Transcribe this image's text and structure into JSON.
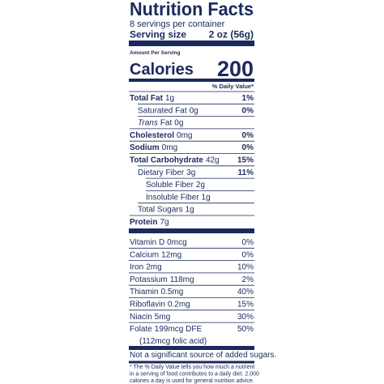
{
  "header": {
    "title": "Nutrition Facts",
    "servings": "8 servings per container",
    "serving_size_label": "Serving size",
    "serving_size": "2 oz (56g)"
  },
  "calories": {
    "amount_per_serving": "Amount Per Serving",
    "label": "Calories",
    "value": "200"
  },
  "daily_value_heading": "% Daily Value*",
  "nutrients": [
    {
      "name": "Total Fat",
      "amount": "1g",
      "dv": "1%"
    },
    {
      "name": "Saturated Fat",
      "amount": "0g",
      "dv": "0%"
    },
    {
      "name_italic": "Trans",
      "name": "Fat",
      "amount": "0g"
    },
    {
      "name": "Cholesterol",
      "amount": "0mg",
      "dv": "0%"
    },
    {
      "name": "Sodium",
      "amount": "0mg",
      "dv": "0%"
    },
    {
      "name": "Total Carbohydrate",
      "amount": "42g",
      "dv": "15%"
    },
    {
      "name": "Dietary Fiber",
      "amount": "3g",
      "dv": "11%"
    },
    {
      "name": "Soluble Fiber",
      "amount": "2g"
    },
    {
      "name": "Insoluble Fiber",
      "amount": "1g"
    },
    {
      "name": "Total Sugars",
      "amount": "1g"
    },
    {
      "name": "Protein",
      "amount": "7g"
    }
  ],
  "vitamins": [
    {
      "name": "Vitamin D",
      "amount": "0mcg",
      "dv": "0%"
    },
    {
      "name": "Calcium",
      "amount": "12mg",
      "dv": "0%"
    },
    {
      "name": "Iron",
      "amount": "2mg",
      "dv": "10%"
    },
    {
      "name": "Potassium",
      "amount": "118mg",
      "dv": "2%"
    },
    {
      "name": "Thiamin",
      "amount": "0.5mg",
      "dv": "40%"
    },
    {
      "name": "Riboflavin",
      "amount": "0.2mg",
      "dv": "15%"
    },
    {
      "name": "Niacin",
      "amount": "5mg",
      "dv": "30%"
    },
    {
      "name": "Folate",
      "amount": "199mcg DFE",
      "dv": "50%"
    }
  ],
  "folate_note": "(112mcg folic acid)",
  "added_sugars_note": "Not a significant source of added sugars.",
  "footnote": [
    "* The % Daily Value tells you how much a nutrient",
    "in a serving of food contributes to a daily diet. 2,000",
    "calories a day is used for general nutrition advice."
  ]
}
